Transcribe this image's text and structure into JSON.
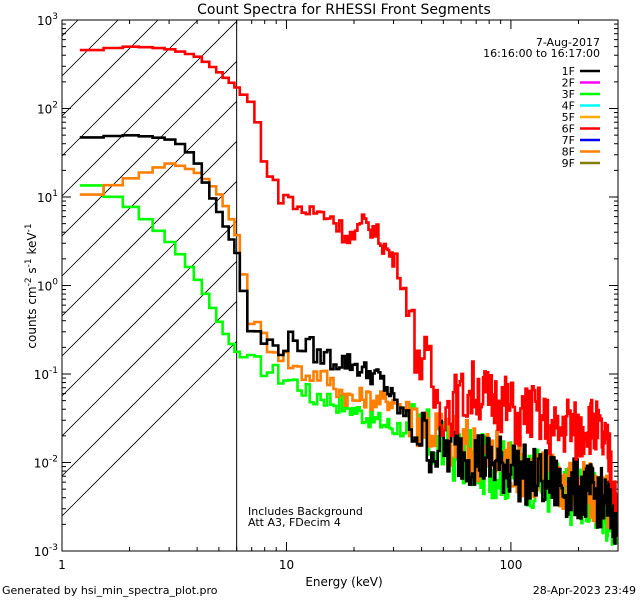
{
  "chart_data": {
    "type": "line",
    "title": "Count Spectra for RHESSI Front Segments",
    "xlabel": "Energy (keV)",
    "ylabel": {
      "base": "counts cm",
      "exp1": "-2",
      "mid1": " s",
      "exp2": "-1",
      "mid2": " keV",
      "exp3": "-1"
    },
    "x_scale": "log",
    "y_scale": "log",
    "xlim": [
      1.0,
      300.0
    ],
    "ylim": [
      0.001,
      1000.0
    ],
    "x_tick_labels": [
      {
        "value": 1,
        "label": "1"
      },
      {
        "value": 10,
        "label": "10"
      },
      {
        "value": 100,
        "label": "100"
      }
    ],
    "y_tick_labels": [
      {
        "value": 0.001,
        "base": "10",
        "exp": "-3"
      },
      {
        "value": 0.01,
        "base": "10",
        "exp": "-2"
      },
      {
        "value": 0.1,
        "base": "10",
        "exp": "-1"
      },
      {
        "value": 1,
        "base": "10",
        "exp": "0"
      },
      {
        "value": 10,
        "base": "10",
        "exp": "1"
      },
      {
        "value": 100,
        "base": "10",
        "exp": "2"
      },
      {
        "value": 1000,
        "base": "10",
        "exp": "3"
      }
    ],
    "date": "7-Aug-2017",
    "time_range": "16:16:00 to 16:17:00",
    "attenuator_cutoff_kev": 6.0,
    "annotations": [
      "Includes Background",
      "Att A3, FDecim  4"
    ],
    "legend_position": "top-right",
    "legend": [
      {
        "name": "1F",
        "color": "#000000"
      },
      {
        "name": "2F",
        "color": "#ff00ff"
      },
      {
        "name": "3F",
        "color": "#00ff00"
      },
      {
        "name": "4F",
        "color": "#00ffff"
      },
      {
        "name": "5F",
        "color": "#ffaa00"
      },
      {
        "name": "6F",
        "color": "#ff0000"
      },
      {
        "name": "7F",
        "color": "#0000ff"
      },
      {
        "name": "8F",
        "color": "#ff7f00"
      },
      {
        "name": "9F",
        "color": "#808000"
      }
    ],
    "series": [
      {
        "name": "6F",
        "color": "#ff0000",
        "points": [
          [
            1.2,
            440
          ],
          [
            1.5,
            470
          ],
          [
            2,
            500
          ],
          [
            2.5,
            490
          ],
          [
            3,
            470
          ],
          [
            3.5,
            430
          ],
          [
            4,
            390
          ],
          [
            4.5,
            320
          ],
          [
            5,
            260
          ],
          [
            5.5,
            210
          ],
          [
            6,
            175
          ],
          [
            6.5,
            140
          ],
          [
            7,
            110
          ],
          [
            7.5,
            60
          ],
          [
            8,
            30
          ],
          [
            8.5,
            17
          ],
          [
            9,
            12
          ],
          [
            10,
            10
          ],
          [
            11,
            8
          ],
          [
            12,
            7
          ],
          [
            14,
            6.5
          ],
          [
            16,
            6
          ],
          [
            18,
            4
          ],
          [
            20,
            3.5
          ],
          [
            22,
            5
          ],
          [
            24,
            4.5
          ],
          [
            26,
            3.5
          ],
          [
            28,
            2.5
          ],
          [
            30,
            2
          ],
          [
            32,
            1.5
          ],
          [
            34,
            0.8
          ],
          [
            36,
            0.35
          ],
          [
            38,
            0.2
          ],
          [
            40,
            0.15
          ],
          [
            42,
            0.12
          ],
          [
            44,
            0.1
          ],
          [
            46,
            0.05
          ],
          [
            48,
            0.06
          ],
          [
            50,
            0.04
          ],
          [
            55,
            0.045
          ],
          [
            60,
            0.05
          ],
          [
            65,
            0.06
          ],
          [
            70,
            0.07
          ],
          [
            75,
            0.06
          ],
          [
            80,
            0.05
          ],
          [
            90,
            0.05
          ],
          [
            100,
            0.04
          ],
          [
            110,
            0.03
          ],
          [
            120,
            0.04
          ],
          [
            140,
            0.03
          ],
          [
            160,
            0.02
          ],
          [
            180,
            0.03
          ],
          [
            200,
            0.02
          ],
          [
            220,
            0.03
          ],
          [
            250,
            0.02
          ],
          [
            280,
            0.01
          ],
          [
            295,
            0.004
          ]
        ]
      },
      {
        "name": "1F",
        "color": "#000000",
        "points": [
          [
            1.2,
            46
          ],
          [
            1.5,
            48
          ],
          [
            2,
            50
          ],
          [
            2.5,
            48
          ],
          [
            3,
            45
          ],
          [
            3.5,
            38
          ],
          [
            4,
            25
          ],
          [
            4.5,
            12
          ],
          [
            5,
            7
          ],
          [
            5.5,
            4
          ],
          [
            6,
            2.5
          ],
          [
            6.3,
            1.2
          ],
          [
            6.7,
            0.5
          ],
          [
            7,
            0.3
          ],
          [
            8,
            0.23
          ],
          [
            9,
            0.2
          ],
          [
            10,
            0.22
          ],
          [
            11,
            0.25
          ],
          [
            12,
            0.2
          ],
          [
            13,
            0.2
          ],
          [
            14,
            0.15
          ],
          [
            15,
            0.17
          ],
          [
            16,
            0.14
          ],
          [
            18,
            0.14
          ],
          [
            20,
            0.13
          ],
          [
            22,
            0.11
          ],
          [
            24,
            0.1
          ],
          [
            26,
            0.09
          ],
          [
            28,
            0.07
          ],
          [
            30,
            0.05
          ],
          [
            32,
            0.04
          ],
          [
            35,
            0.03
          ],
          [
            38,
            0.025
          ],
          [
            40,
            0.02
          ],
          [
            45,
            0.015
          ],
          [
            50,
            0.014
          ],
          [
            60,
            0.013
          ],
          [
            70,
            0.012
          ],
          [
            80,
            0.01
          ],
          [
            100,
            0.009
          ],
          [
            120,
            0.007
          ],
          [
            150,
            0.006
          ],
          [
            180,
            0.005
          ],
          [
            200,
            0.005
          ],
          [
            250,
            0.004
          ],
          [
            295,
            0.0025
          ]
        ]
      },
      {
        "name": "8F",
        "color": "#ff7f00",
        "points": [
          [
            1.2,
            9
          ],
          [
            1.5,
            12
          ],
          [
            2,
            16
          ],
          [
            2.5,
            20
          ],
          [
            3,
            24
          ],
          [
            3.5,
            22
          ],
          [
            4,
            19
          ],
          [
            4.5,
            15
          ],
          [
            5,
            11
          ],
          [
            5.5,
            7
          ],
          [
            6,
            4
          ],
          [
            6.3,
            1.8
          ],
          [
            6.7,
            0.8
          ],
          [
            7,
            0.4
          ],
          [
            8,
            0.25
          ],
          [
            9,
            0.2
          ],
          [
            10,
            0.15
          ],
          [
            11,
            0.12
          ],
          [
            12,
            0.1
          ],
          [
            14,
            0.1
          ],
          [
            16,
            0.08
          ],
          [
            18,
            0.06
          ],
          [
            20,
            0.05
          ],
          [
            22,
            0.055
          ],
          [
            25,
            0.05
          ],
          [
            30,
            0.05
          ],
          [
            35,
            0.04
          ],
          [
            40,
            0.03
          ],
          [
            45,
            0.025
          ],
          [
            50,
            0.02
          ],
          [
            60,
            0.015
          ],
          [
            70,
            0.014
          ],
          [
            80,
            0.012
          ],
          [
            100,
            0.01
          ],
          [
            120,
            0.009
          ],
          [
            150,
            0.007
          ],
          [
            180,
            0.006
          ],
          [
            200,
            0.005
          ],
          [
            250,
            0.004
          ],
          [
            295,
            0.003
          ]
        ]
      },
      {
        "name": "3F",
        "color": "#00ff00",
        "points": [
          [
            1.2,
            16
          ],
          [
            1.5,
            12
          ],
          [
            2,
            8
          ],
          [
            2.5,
            5
          ],
          [
            3,
            3.2
          ],
          [
            3.5,
            2
          ],
          [
            4,
            1.2
          ],
          [
            4.5,
            0.7
          ],
          [
            5,
            0.4
          ],
          [
            5.5,
            0.25
          ],
          [
            6,
            0.18
          ],
          [
            7,
            0.13
          ],
          [
            8,
            0.12
          ],
          [
            9,
            0.1
          ],
          [
            10,
            0.09
          ],
          [
            11,
            0.08
          ],
          [
            12,
            0.07
          ],
          [
            13,
            0.05
          ],
          [
            14,
            0.06
          ],
          [
            16,
            0.05
          ],
          [
            18,
            0.045
          ],
          [
            20,
            0.04
          ],
          [
            22,
            0.035
          ],
          [
            25,
            0.03
          ],
          [
            30,
            0.025
          ],
          [
            35,
            0.025
          ],
          [
            40,
            0.02
          ],
          [
            50,
            0.015
          ],
          [
            60,
            0.012
          ],
          [
            70,
            0.01
          ],
          [
            80,
            0.009
          ],
          [
            100,
            0.008
          ],
          [
            120,
            0.007
          ],
          [
            140,
            0.006
          ],
          [
            160,
            0.005
          ],
          [
            180,
            0.004
          ],
          [
            200,
            0.005
          ],
          [
            250,
            0.003
          ],
          [
            295,
            0.0025
          ]
        ]
      }
    ]
  },
  "footer": {
    "generated_by": "Generated by hsi_min_spectra_plot.pro",
    "timestamp": "28-Apr-2023 23:49"
  }
}
